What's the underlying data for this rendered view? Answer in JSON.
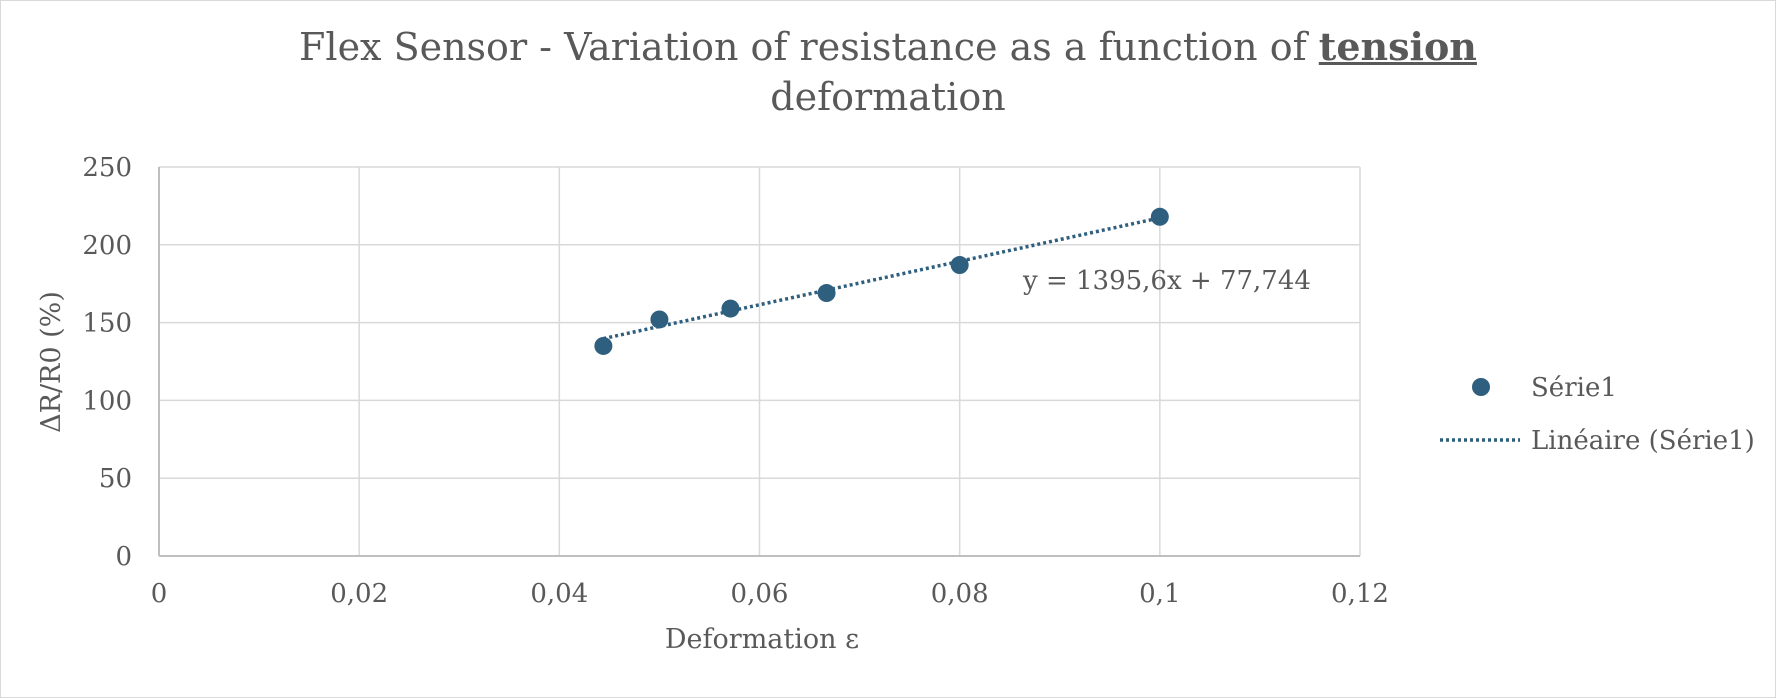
{
  "chart_data": {
    "type": "scatter",
    "title": {
      "prefix": "Flex Sensor - Variation of resistance as a function of ",
      "emphasis": "tension",
      "suffix": "deformation"
    },
    "xlabel": "Deformation ε",
    "ylabel": "ΔR/R0 (%)",
    "xlim": [
      0,
      0.12
    ],
    "ylim": [
      0,
      250
    ],
    "x_ticks": [
      0,
      0.02,
      0.04,
      0.06,
      0.08,
      0.1,
      0.12
    ],
    "x_tick_labels": [
      "0",
      "0,02",
      "0,04",
      "0,06",
      "0,08",
      "0,1",
      "0,12"
    ],
    "y_ticks": [
      0,
      50,
      100,
      150,
      200,
      250
    ],
    "y_tick_labels": [
      "0",
      "50",
      "100",
      "150",
      "200",
      "250"
    ],
    "grid": true,
    "legend_position": "right",
    "series": [
      {
        "name": "Série1",
        "color": "#2e5f7f",
        "x": [
          0.0444,
          0.05,
          0.0571,
          0.0667,
          0.08,
          0.1
        ],
        "y": [
          135,
          152,
          159,
          169,
          187,
          218
        ]
      }
    ],
    "trendline": {
      "name": "Linéaire (Série1)",
      "type": "linear",
      "slope": 1395.6,
      "intercept": 77.744,
      "x_range": [
        0.0444,
        0.1
      ],
      "equation_label": "y = 1395,6x + 77,744",
      "color": "#2e5f7f"
    }
  }
}
